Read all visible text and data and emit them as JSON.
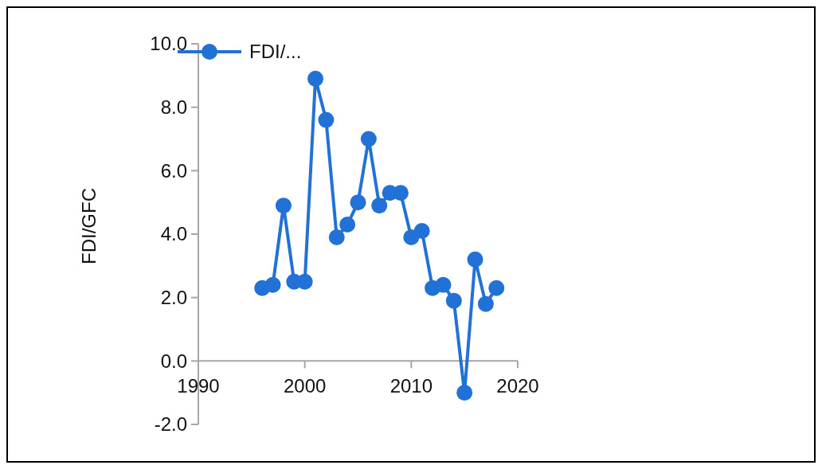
{
  "chart_data": {
    "type": "line",
    "ylabel": "FDI/GFC",
    "x": [
      1996,
      1997,
      1998,
      1999,
      2000,
      2001,
      2002,
      2003,
      2004,
      2005,
      2006,
      2007,
      2008,
      2009,
      2010,
      2011,
      2012,
      2013,
      2014,
      2015,
      2016,
      2017,
      2018
    ],
    "series": [
      {
        "name": "FDI/...",
        "color": "#2271d6",
        "values": [
          2.3,
          2.4,
          4.9,
          2.5,
          2.5,
          8.9,
          7.6,
          3.9,
          4.3,
          5.0,
          7.0,
          4.9,
          5.3,
          5.3,
          3.9,
          4.1,
          2.3,
          2.4,
          1.9,
          -1.0,
          3.2,
          1.8,
          2.3
        ]
      }
    ],
    "xlim": [
      1990,
      2020
    ],
    "xticks": [
      1990,
      2000,
      2010,
      2020
    ],
    "ylim": [
      -2,
      10
    ],
    "yticks": [
      {
        "value": -2,
        "label": "-2.0"
      },
      {
        "value": 0,
        "label": "0.0"
      },
      {
        "value": 2,
        "label": "2.0"
      },
      {
        "value": 4,
        "label": "4.0"
      },
      {
        "value": 6,
        "label": "6.0"
      },
      {
        "value": 8,
        "label": "8.0"
      },
      {
        "value": 10,
        "label": "10.0"
      }
    ],
    "grid": false,
    "legend": "top left",
    "marker": "circle",
    "line_style": "solid"
  }
}
